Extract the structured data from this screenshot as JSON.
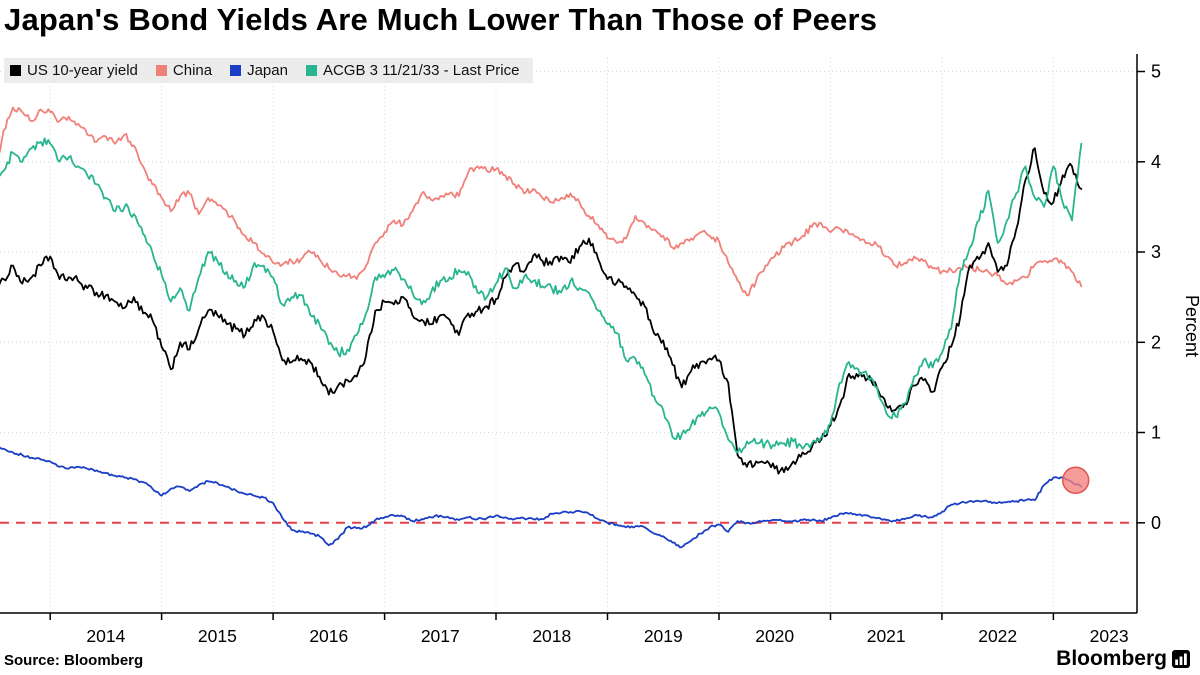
{
  "title": "Japan's Bond Yields Are Much Lower Than Those of Peers",
  "footer": {
    "source": "Source: Bloomberg",
    "brand": "Bloomberg"
  },
  "chart_data": {
    "type": "line",
    "title": "Japan's Bond Yields Are Much Lower Than Those of Peers",
    "xlabel": "",
    "ylabel": "Percent",
    "ylim": [
      -1.0,
      5.15
    ],
    "xlim": [
      2013.55,
      2023.75
    ],
    "yticks": [
      0,
      1,
      2,
      3,
      4,
      5
    ],
    "xticks": [
      2014,
      2015,
      2016,
      2017,
      2018,
      2019,
      2020,
      2021,
      2022,
      2023
    ],
    "grid": "dotted",
    "grid_color": "#d8d8d8",
    "legend_position": "top-left",
    "x_start": 2013.5,
    "x_step": 0.08333333,
    "draw_order": [
      1,
      0,
      3,
      2
    ],
    "zero_line": {
      "value": 0,
      "style": "dashed",
      "color": "#e83e4c"
    },
    "highlight": {
      "x": 2023.2,
      "y": 0.47,
      "radius": 13,
      "fill": "#f4827d",
      "fill_opacity": 0.78,
      "stroke": "#e0524d"
    },
    "series": [
      {
        "name": "US 10-year yield",
        "color": "#000000",
        "jitter": 0.05,
        "values": [
          2.5,
          2.7,
          2.85,
          2.65,
          2.72,
          2.85,
          2.95,
          2.7,
          2.72,
          2.68,
          2.6,
          2.55,
          2.52,
          2.45,
          2.38,
          2.5,
          2.32,
          2.25,
          1.95,
          1.7,
          2.0,
          1.92,
          2.15,
          2.35,
          2.3,
          2.2,
          2.15,
          2.08,
          2.25,
          2.28,
          2.12,
          1.8,
          1.78,
          1.82,
          1.78,
          1.62,
          1.42,
          1.52,
          1.58,
          1.62,
          1.85,
          2.35,
          2.45,
          2.42,
          2.5,
          2.3,
          2.25,
          2.2,
          2.3,
          2.25,
          2.08,
          2.32,
          2.35,
          2.4,
          2.48,
          2.72,
          2.86,
          2.78,
          2.96,
          2.9,
          2.86,
          2.95,
          2.88,
          3.06,
          3.15,
          2.92,
          2.7,
          2.66,
          2.62,
          2.52,
          2.4,
          2.1,
          2.02,
          1.75,
          1.5,
          1.68,
          1.78,
          1.82,
          1.8,
          1.55,
          0.75,
          0.62,
          0.68,
          0.66,
          0.6,
          0.56,
          0.68,
          0.78,
          0.84,
          0.92,
          1.08,
          1.3,
          1.65,
          1.62,
          1.6,
          1.5,
          1.3,
          1.25,
          1.32,
          1.52,
          1.58,
          1.45,
          1.72,
          1.95,
          2.3,
          2.85,
          2.92,
          3.1,
          2.78,
          2.85,
          3.25,
          3.8,
          4.15,
          3.65,
          3.55,
          3.85,
          3.95,
          3.7
        ]
      },
      {
        "name": "China",
        "color": "#f0817a",
        "jitter": 0.035,
        "values": [
          3.85,
          4.35,
          4.6,
          4.55,
          4.45,
          4.58,
          4.55,
          4.45,
          4.5,
          4.42,
          4.3,
          4.22,
          4.28,
          4.2,
          4.3,
          4.18,
          3.95,
          3.75,
          3.6,
          3.45,
          3.62,
          3.65,
          3.42,
          3.6,
          3.52,
          3.45,
          3.32,
          3.18,
          3.1,
          2.98,
          2.88,
          2.86,
          2.9,
          2.92,
          3.0,
          2.92,
          2.82,
          2.75,
          2.74,
          2.7,
          2.85,
          3.1,
          3.22,
          3.35,
          3.3,
          3.45,
          3.65,
          3.58,
          3.62,
          3.65,
          3.62,
          3.88,
          3.95,
          3.9,
          3.92,
          3.85,
          3.75,
          3.65,
          3.7,
          3.6,
          3.55,
          3.6,
          3.65,
          3.55,
          3.4,
          3.3,
          3.15,
          3.1,
          3.15,
          3.4,
          3.32,
          3.25,
          3.18,
          3.05,
          3.1,
          3.15,
          3.22,
          3.18,
          3.12,
          2.88,
          2.68,
          2.52,
          2.68,
          2.85,
          2.95,
          3.05,
          3.12,
          3.18,
          3.28,
          3.32,
          3.22,
          3.26,
          3.2,
          3.16,
          3.1,
          3.08,
          2.95,
          2.85,
          2.88,
          2.95,
          2.9,
          2.82,
          2.78,
          2.8,
          2.82,
          2.84,
          2.8,
          2.78,
          2.74,
          2.64,
          2.68,
          2.72,
          2.86,
          2.9,
          2.92,
          2.88,
          2.78,
          2.62
        ]
      },
      {
        "name": "Japan",
        "color": "#1a3ec6",
        "jitter": 0.013,
        "values": [
          0.85,
          0.82,
          0.78,
          0.75,
          0.72,
          0.7,
          0.68,
          0.62,
          0.6,
          0.62,
          0.6,
          0.58,
          0.55,
          0.52,
          0.5,
          0.48,
          0.45,
          0.38,
          0.3,
          0.38,
          0.4,
          0.35,
          0.42,
          0.46,
          0.44,
          0.4,
          0.36,
          0.32,
          0.3,
          0.28,
          0.22,
          0.05,
          -0.08,
          -0.1,
          -0.12,
          -0.15,
          -0.25,
          -0.18,
          -0.05,
          -0.06,
          -0.05,
          0.03,
          0.06,
          0.08,
          0.07,
          0.02,
          0.04,
          0.06,
          0.08,
          0.05,
          0.03,
          0.06,
          0.04,
          0.05,
          0.08,
          0.06,
          0.04,
          0.05,
          0.04,
          0.04,
          0.1,
          0.11,
          0.12,
          0.13,
          0.1,
          0.04,
          0.0,
          -0.02,
          -0.05,
          -0.04,
          -0.05,
          -0.12,
          -0.15,
          -0.22,
          -0.27,
          -0.2,
          -0.12,
          -0.05,
          -0.02,
          -0.1,
          0.02,
          0.0,
          0.0,
          0.02,
          0.03,
          0.02,
          0.02,
          0.03,
          0.03,
          0.02,
          0.05,
          0.1,
          0.1,
          0.09,
          0.08,
          0.05,
          0.03,
          0.02,
          0.04,
          0.08,
          0.07,
          0.06,
          0.12,
          0.2,
          0.22,
          0.24,
          0.24,
          0.23,
          0.22,
          0.23,
          0.24,
          0.25,
          0.25,
          0.42,
          0.5,
          0.5,
          0.45,
          0.4
        ]
      },
      {
        "name": "ACGB 3 11/21/33 - Last Price",
        "color": "#28b58f",
        "jitter": 0.05,
        "values": [
          3.75,
          3.9,
          4.1,
          4.0,
          4.15,
          4.22,
          4.2,
          4.0,
          4.05,
          3.95,
          3.85,
          3.75,
          3.6,
          3.45,
          3.5,
          3.42,
          3.2,
          3.0,
          2.75,
          2.45,
          2.6,
          2.35,
          2.72,
          3.0,
          2.9,
          2.78,
          2.68,
          2.62,
          2.88,
          2.85,
          2.72,
          2.42,
          2.5,
          2.52,
          2.3,
          2.2,
          1.98,
          1.88,
          1.92,
          2.08,
          2.32,
          2.72,
          2.72,
          2.8,
          2.7,
          2.55,
          2.42,
          2.55,
          2.68,
          2.72,
          2.8,
          2.78,
          2.55,
          2.5,
          2.65,
          2.82,
          2.6,
          2.72,
          2.68,
          2.62,
          2.6,
          2.55,
          2.68,
          2.6,
          2.55,
          2.35,
          2.2,
          2.1,
          1.8,
          1.82,
          1.65,
          1.4,
          1.25,
          0.95,
          0.98,
          1.08,
          1.18,
          1.28,
          1.22,
          0.92,
          0.78,
          0.9,
          0.88,
          0.88,
          0.85,
          0.88,
          0.9,
          0.82,
          0.88,
          0.95,
          1.1,
          1.55,
          1.78,
          1.7,
          1.62,
          1.5,
          1.22,
          1.18,
          1.32,
          1.62,
          1.8,
          1.72,
          1.88,
          2.15,
          2.8,
          3.05,
          3.35,
          3.68,
          3.1,
          3.35,
          3.65,
          3.95,
          3.6,
          3.5,
          3.95,
          3.55,
          3.35,
          4.2
        ]
      }
    ]
  }
}
